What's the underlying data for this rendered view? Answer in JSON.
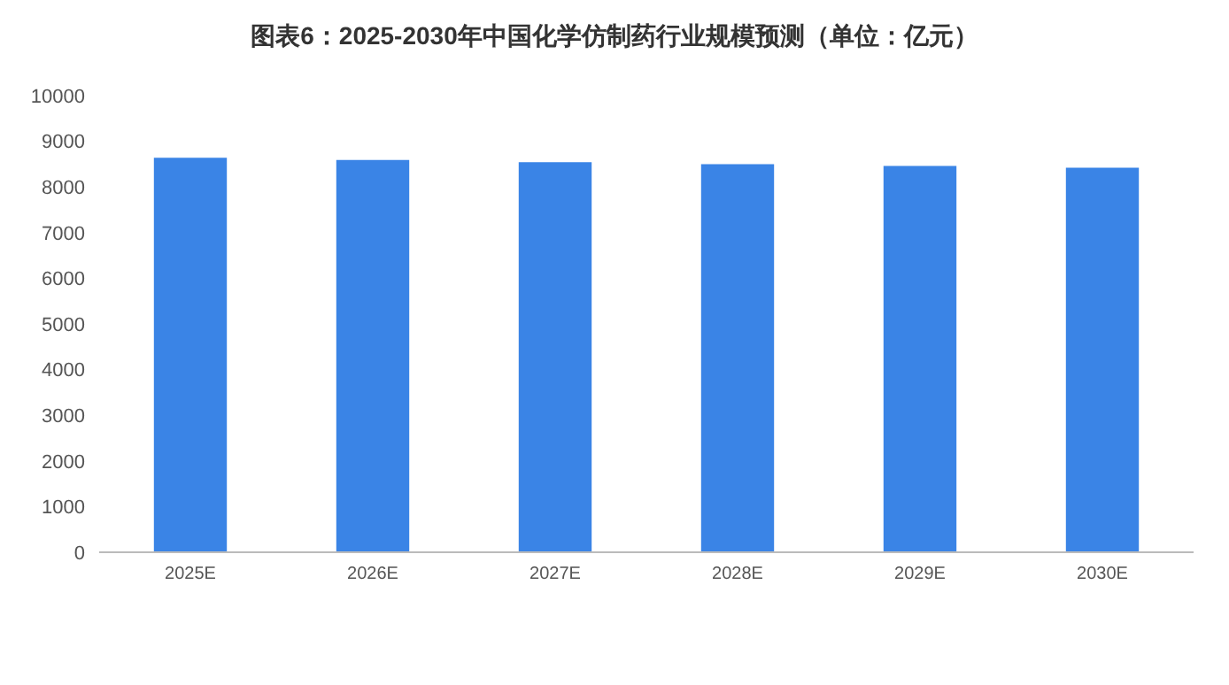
{
  "chart_data": {
    "type": "bar",
    "title": "图表6：2025-2030年中国化学仿制药行业规模预测（单位：亿元）",
    "categories": [
      "2025E",
      "2026E",
      "2027E",
      "2028E",
      "2029E",
      "2030E"
    ],
    "values": [
      8640,
      8590,
      8540,
      8500,
      8460,
      8420
    ],
    "color": "#3a84e6",
    "ylim": [
      0,
      10000
    ],
    "yticks": [
      0,
      1000,
      2000,
      3000,
      4000,
      5000,
      6000,
      7000,
      8000,
      9000,
      10000
    ],
    "grid": false
  }
}
